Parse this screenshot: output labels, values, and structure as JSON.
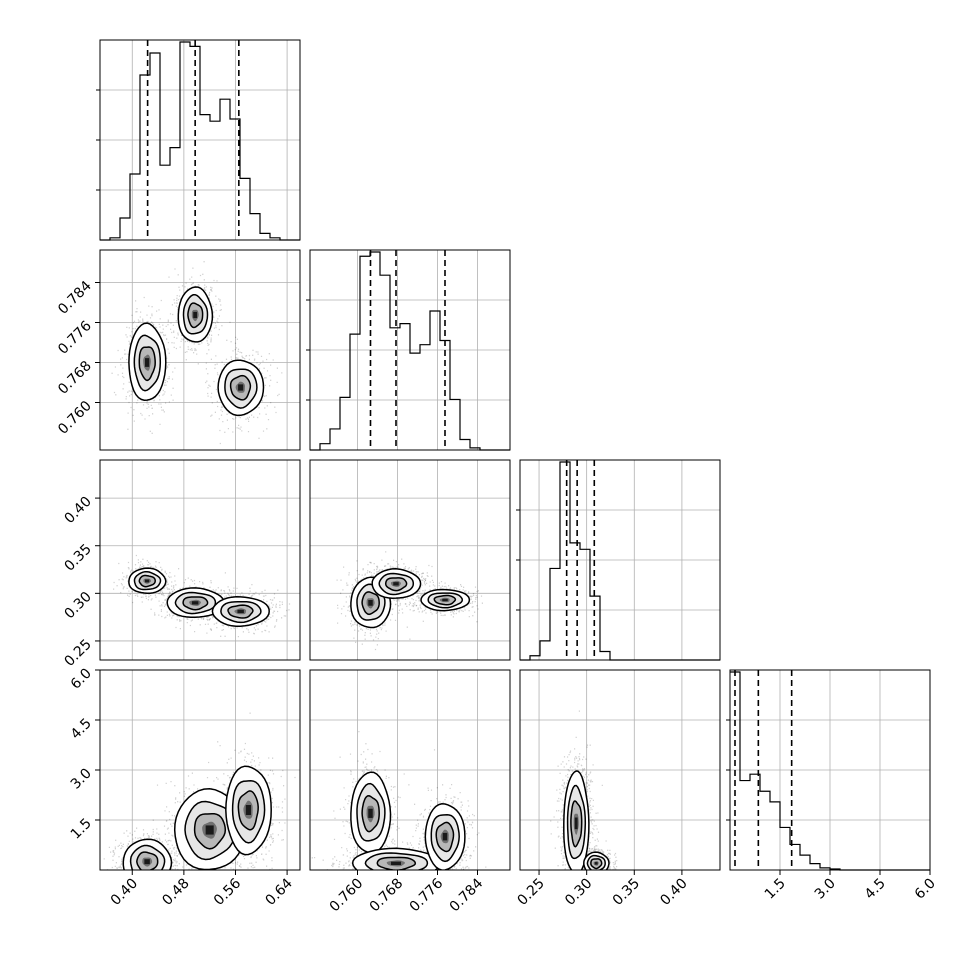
{
  "chart_data": {
    "type": "corner",
    "grid": true,
    "parameters": [
      {
        "range": [
          0.35,
          0.66
        ],
        "ticks": [
          0.4,
          0.48,
          0.56,
          0.64
        ],
        "tick_labels": [
          "0.40",
          "0.48",
          "0.56",
          "0.64"
        ],
        "quantiles": [
          0.4238,
          0.4975,
          0.5652
        ]
      },
      {
        "range": [
          0.7505,
          0.7905
        ],
        "ticks": [
          0.76,
          0.768,
          0.776,
          0.784
        ],
        "tick_labels": [
          "0.760",
          "0.768",
          "0.776",
          "0.784"
        ],
        "quantiles": [
          0.7626,
          0.7677,
          0.7775
        ]
      },
      {
        "range": [
          0.23,
          0.44
        ],
        "ticks": [
          0.25,
          0.3,
          0.35,
          0.4
        ],
        "tick_labels": [
          "0.25",
          "0.30",
          "0.35",
          "0.40"
        ],
        "quantiles": [
          0.279,
          0.29,
          0.308
        ]
      },
      {
        "range": [
          0.0,
          6.0
        ],
        "ticks": [
          1.5,
          3.0,
          4.5,
          6.0
        ],
        "tick_labels": [
          "1.5",
          "3.0",
          "4.5",
          "6.0"
        ],
        "quantiles": [
          0.15,
          0.85,
          1.85
        ]
      }
    ],
    "histograms": [
      {
        "param": 0,
        "edges": [
          0.35,
          0.3655,
          0.381,
          0.3965,
          0.412,
          0.4275,
          0.443,
          0.4585,
          0.474,
          0.4895,
          0.505,
          0.5205,
          0.536,
          0.5515,
          0.567,
          0.5825,
          0.598,
          0.6135,
          0.629,
          0.6445,
          0.66
        ],
        "counts": [
          0.0,
          0.01,
          0.1,
          0.3,
          0.75,
          0.85,
          0.34,
          0.42,
          0.9,
          0.88,
          0.57,
          0.54,
          0.64,
          0.55,
          0.28,
          0.12,
          0.03,
          0.01,
          0.0,
          0.0
        ]
      },
      {
        "param": 1,
        "edges": [
          0.7505,
          0.7525,
          0.7545,
          0.7565,
          0.7585,
          0.7605,
          0.7625,
          0.7645,
          0.7665,
          0.7685,
          0.7705,
          0.7725,
          0.7745,
          0.7765,
          0.7785,
          0.7805,
          0.7825,
          0.7845,
          0.7865,
          0.7885,
          0.7905
        ],
        "counts": [
          0.0,
          0.03,
          0.1,
          0.25,
          0.55,
          0.92,
          0.94,
          0.83,
          0.58,
          0.6,
          0.46,
          0.5,
          0.66,
          0.52,
          0.24,
          0.05,
          0.01,
          0.0,
          0.0,
          0.0
        ]
      },
      {
        "param": 2,
        "edges": [
          0.23,
          0.2405,
          0.251,
          0.2615,
          0.272,
          0.2825,
          0.293,
          0.3035,
          0.314,
          0.3245,
          0.335,
          0.3455,
          0.356,
          0.3665,
          0.377,
          0.3875,
          0.398,
          0.4085,
          0.419,
          0.4295,
          0.44
        ],
        "counts": [
          0.0,
          0.02,
          0.09,
          0.43,
          0.93,
          0.55,
          0.52,
          0.3,
          0.04,
          0.0,
          0.0,
          0.0,
          0.0,
          0.0,
          0.0,
          0.0,
          0.0,
          0.0,
          0.0,
          0.0
        ]
      },
      {
        "param": 3,
        "edges": [
          0.0,
          0.3,
          0.6,
          0.9,
          1.2,
          1.5,
          1.8,
          2.1,
          2.4,
          2.7,
          3.0,
          3.3,
          3.6,
          3.9,
          4.2,
          4.5,
          4.8,
          5.1,
          5.4,
          5.7,
          6.0
        ],
        "counts": [
          0.93,
          0.42,
          0.45,
          0.37,
          0.32,
          0.2,
          0.12,
          0.07,
          0.03,
          0.01,
          0.005,
          0.0,
          0.0,
          0.0,
          0.0,
          0.0,
          0.0,
          0.0,
          0.0,
          0.0
        ]
      }
    ],
    "density_2d": [
      {
        "x_param": 0,
        "y_param": 1,
        "modes": [
          {
            "x": 0.4975,
            "y": 0.7775,
            "sx": 0.012,
            "sy": 0.0025,
            "weight": 0.34
          },
          {
            "x": 0.423,
            "y": 0.768,
            "sx": 0.013,
            "sy": 0.0035,
            "weight": 0.33
          },
          {
            "x": 0.568,
            "y": 0.763,
            "sx": 0.016,
            "sy": 0.0025,
            "weight": 0.33
          }
        ]
      },
      {
        "x_param": 0,
        "y_param": 2,
        "modes": [
          {
            "x": 0.423,
            "y": 0.313,
            "sx": 0.013,
            "sy": 0.006,
            "weight": 0.33
          },
          {
            "x": 0.4975,
            "y": 0.29,
            "sx": 0.02,
            "sy": 0.007,
            "weight": 0.34
          },
          {
            "x": 0.568,
            "y": 0.281,
            "sx": 0.02,
            "sy": 0.007,
            "weight": 0.33
          }
        ]
      },
      {
        "x_param": 0,
        "y_param": 3,
        "modes": [
          {
            "x": 0.423,
            "y": 0.25,
            "sx": 0.017,
            "sy": 0.3,
            "weight": 0.33
          },
          {
            "x": 0.52,
            "y": 1.2,
            "sx": 0.025,
            "sy": 0.55,
            "weight": 0.34
          },
          {
            "x": 0.58,
            "y": 1.8,
            "sx": 0.016,
            "sy": 0.6,
            "weight": 0.33
          }
        ]
      },
      {
        "x_param": 1,
        "y_param": 2,
        "modes": [
          {
            "x": 0.7626,
            "y": 0.29,
            "sx": 0.0018,
            "sy": 0.012,
            "weight": 0.33
          },
          {
            "x": 0.7677,
            "y": 0.31,
            "sx": 0.0022,
            "sy": 0.007,
            "weight": 0.33
          },
          {
            "x": 0.7775,
            "y": 0.293,
            "sx": 0.0022,
            "sy": 0.005,
            "weight": 0.34
          }
        ]
      },
      {
        "x_param": 1,
        "y_param": 3,
        "modes": [
          {
            "x": 0.7626,
            "y": 1.7,
            "sx": 0.0018,
            "sy": 0.55,
            "weight": 0.3
          },
          {
            "x": 0.7677,
            "y": 0.2,
            "sx": 0.004,
            "sy": 0.2,
            "weight": 0.4
          },
          {
            "x": 0.7775,
            "y": 1.0,
            "sx": 0.0018,
            "sy": 0.45,
            "weight": 0.3
          }
        ]
      },
      {
        "x_param": 2,
        "y_param": 3,
        "modes": [
          {
            "x": 0.289,
            "y": 1.4,
            "sx": 0.006,
            "sy": 0.7,
            "weight": 0.6
          },
          {
            "x": 0.31,
            "y": 0.2,
            "sx": 0.006,
            "sy": 0.15,
            "weight": 0.4
          }
        ]
      }
    ]
  }
}
